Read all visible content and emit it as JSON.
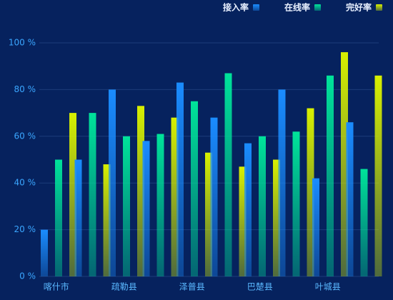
{
  "chart_data": {
    "type": "bar",
    "categories": [
      "喀什市",
      null,
      "疏勒县",
      null,
      "泽普县",
      null,
      "巴楚县",
      null,
      "叶城县",
      null
    ],
    "series": [
      {
        "name": "接入率",
        "color": "#1a8cff",
        "values": [
          20,
          50,
          80,
          58,
          83,
          68,
          57,
          80,
          42,
          66
        ]
      },
      {
        "name": "在线率",
        "color": "#00e39a",
        "values": [
          50,
          70,
          60,
          61,
          75,
          87,
          60,
          62,
          86,
          46
        ]
      },
      {
        "name": "完好率",
        "color": "#d8f000",
        "values": [
          70,
          48,
          73,
          68,
          53,
          47,
          50,
          72,
          96,
          86
        ]
      }
    ],
    "ylim": [
      0,
      100
    ],
    "yticks": [
      {
        "value": 0,
        "label": "0 %"
      },
      {
        "value": 20,
        "label": "20 %"
      },
      {
        "value": 40,
        "label": "40 %"
      },
      {
        "value": 60,
        "label": "60 %"
      },
      {
        "value": 80,
        "label": "80 %"
      },
      {
        "value": 100,
        "label": "100 %"
      }
    ],
    "grid": true,
    "legend": "top-right"
  }
}
